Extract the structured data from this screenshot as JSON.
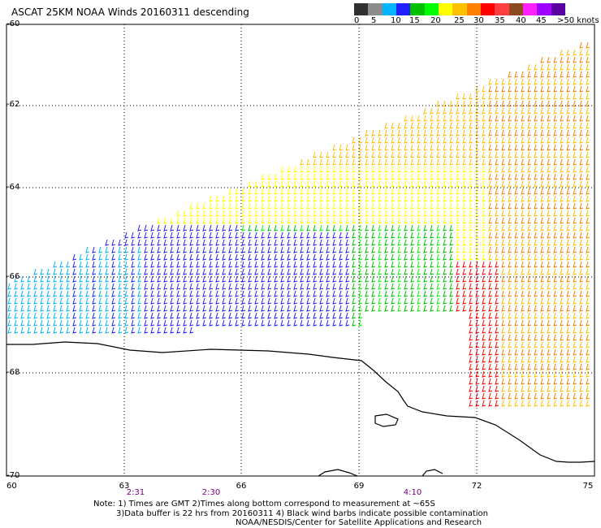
{
  "title": "ASCAT 25KM NOAA Winds 20160311 descending",
  "colorbar": {
    "colors": [
      "#303030",
      "#8c8c8c",
      "#00b4ff",
      "#2020ff",
      "#00c000",
      "#00ff00",
      "#ffff00",
      "#ffc000",
      "#ff8000",
      "#ff0000",
      "#ff4040",
      "#8c4a1e",
      "#ff20ff",
      "#a000ff",
      "#5a00a0"
    ],
    "labels": [
      "0",
      "5",
      "10",
      "15",
      "20",
      "25",
      "30",
      "35",
      "40",
      "45",
      ">50 knots"
    ]
  },
  "lat_labels": [
    "-60",
    "-62",
    "-64",
    "-66",
    "-68",
    "-70"
  ],
  "lon_labels": [
    "60",
    "63",
    "66",
    "69",
    "72",
    "75"
  ],
  "times": [
    "2:31",
    "2:30",
    "4:10"
  ],
  "notes": {
    "line1": "Note: 1) Times are GMT 2)Times along bottom correspond to measurement at ~65S",
    "line2": "3)Data buffer is 22 hrs from 20160311 4) Black wind barbs indicate possible contamination",
    "line3": "NOAA/NESDIS/Center for Satellite Applications and Research"
  }
}
